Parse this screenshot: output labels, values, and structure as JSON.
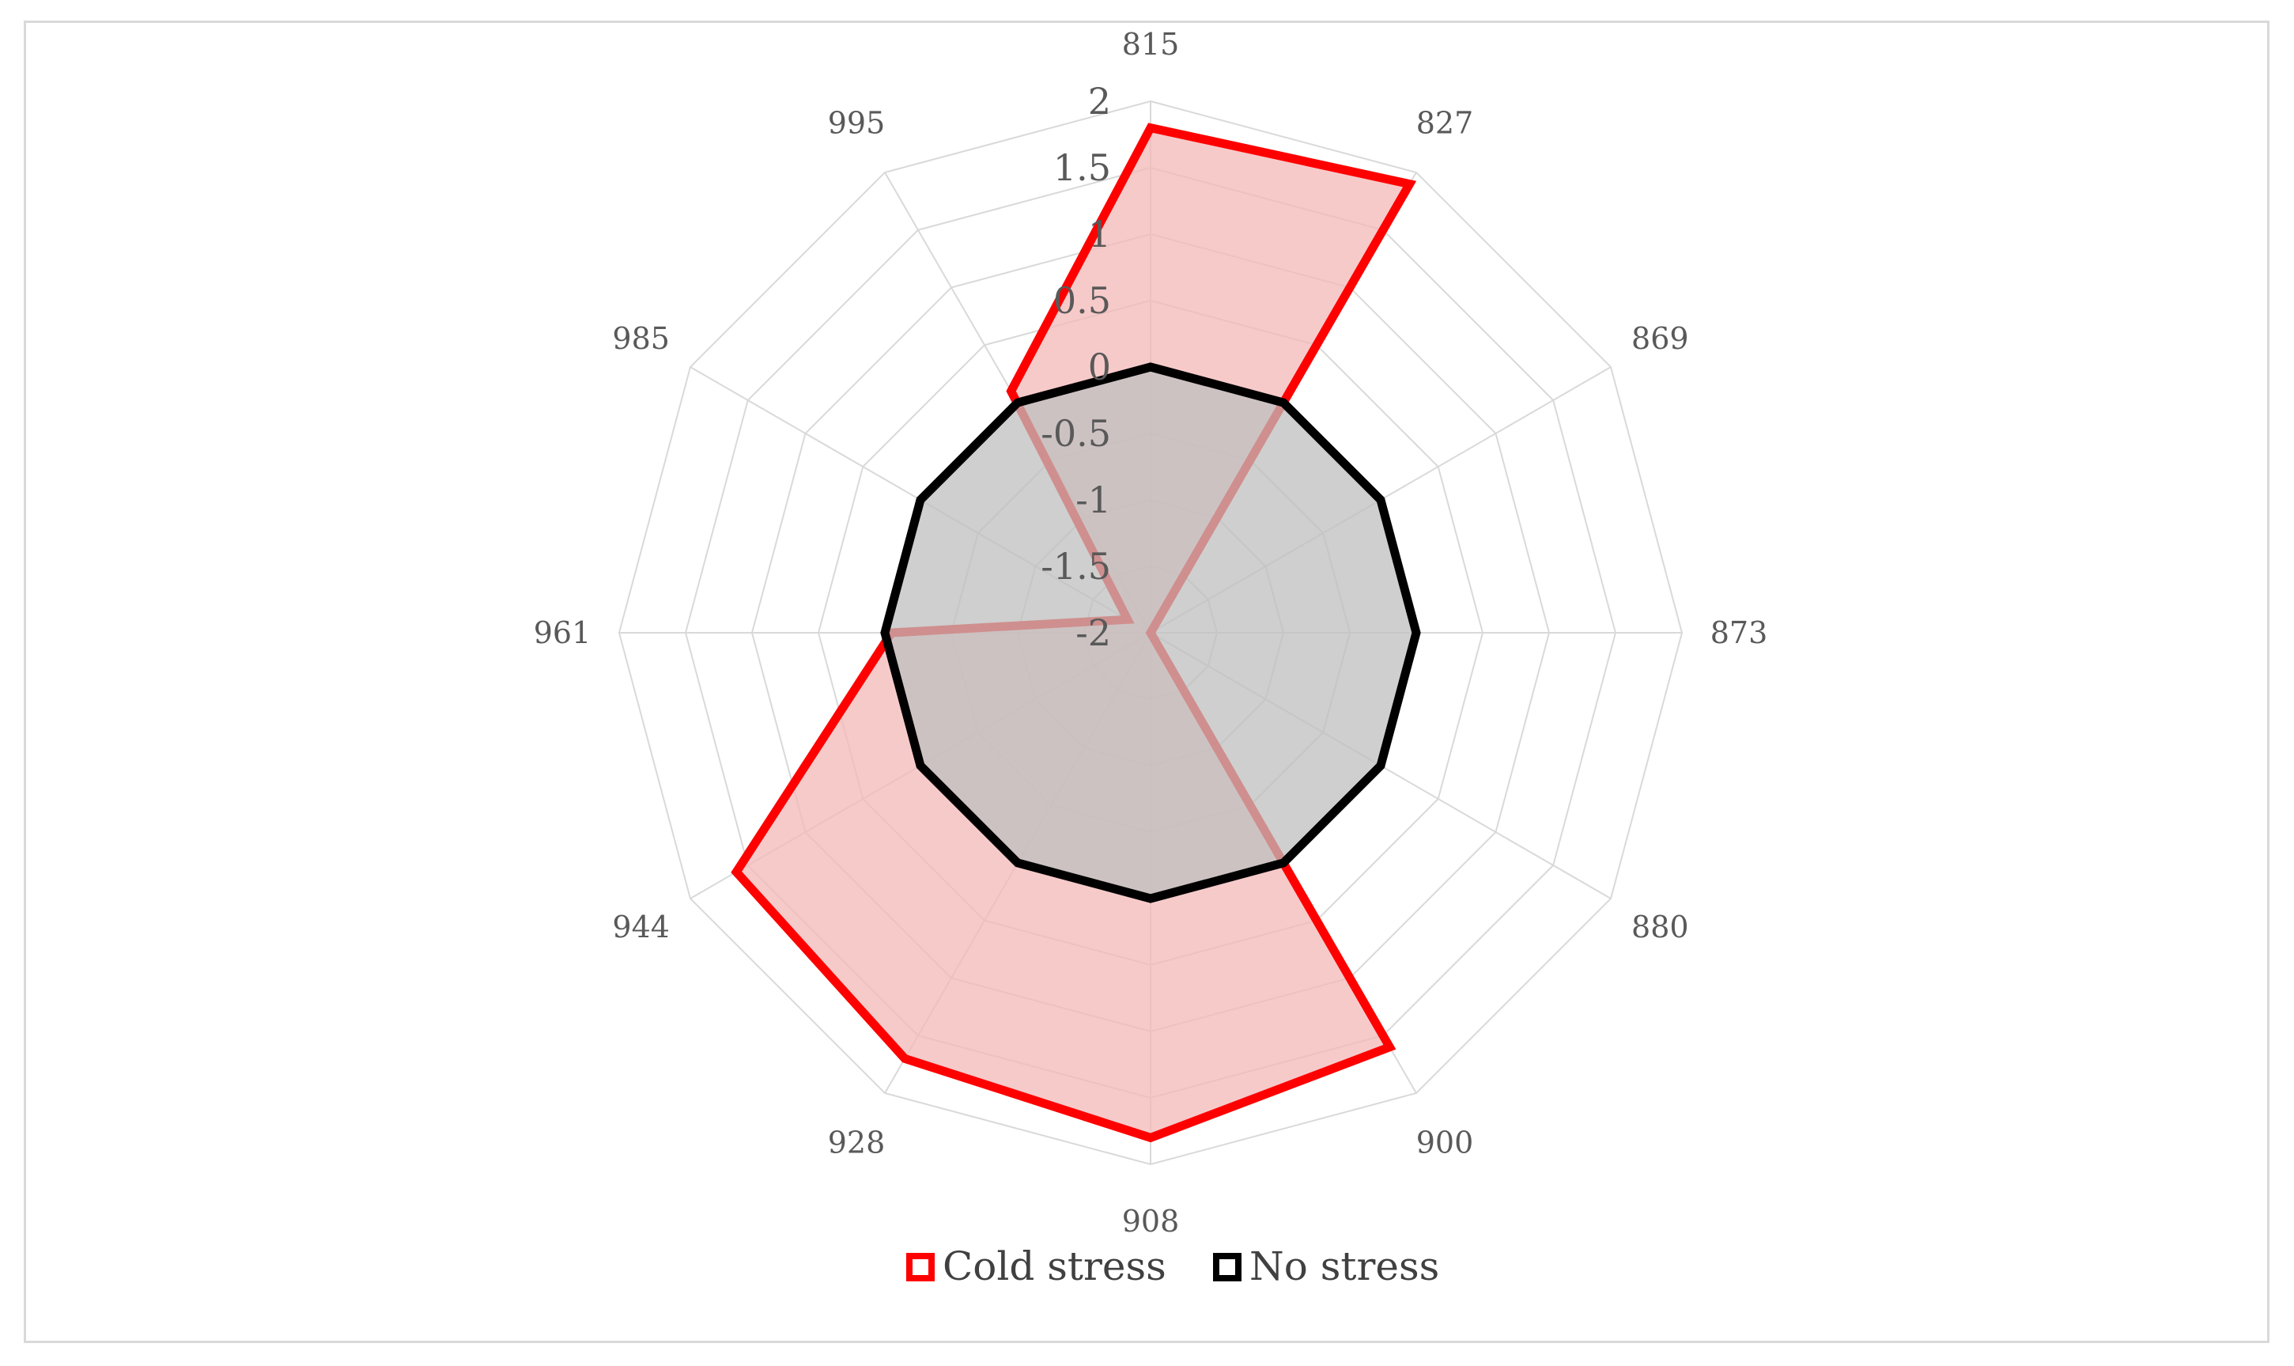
{
  "chart_data": {
    "type": "radar",
    "categories": [
      "815",
      "827",
      "869",
      "873",
      "880",
      "900",
      "908",
      "928",
      "944",
      "961",
      "985",
      "995"
    ],
    "r_ticks": [
      "2",
      "1.5",
      "1",
      "0.5",
      "0",
      "-0.5",
      "-1",
      "-1.5",
      "-2"
    ],
    "r_values": [
      2,
      1.5,
      1,
      0.5,
      0,
      -0.5,
      -1,
      -1.5,
      -2
    ],
    "rlim": [
      -2,
      2
    ],
    "grid": true,
    "legend_position": "bottom",
    "series": [
      {
        "name": "Cold stress",
        "values": [
          1.8,
          1.9,
          -2.0,
          -2.0,
          -2.0,
          1.6,
          1.8,
          1.7,
          1.6,
          -0.05,
          -1.8,
          0.1
        ],
        "stroke": "#ff0000",
        "fill": "#f4b8b8"
      },
      {
        "name": "No stress",
        "values": [
          0,
          0,
          0,
          0,
          0,
          0,
          0,
          0,
          0,
          0,
          0,
          0
        ],
        "stroke": "#000000",
        "fill": "#bfbfbf"
      }
    ]
  }
}
